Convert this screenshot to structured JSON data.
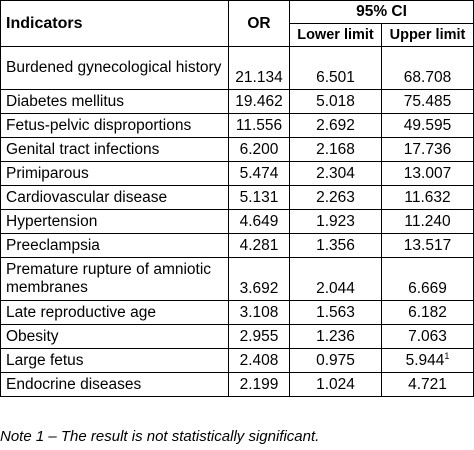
{
  "table": {
    "headers": {
      "indicators": "Indicators",
      "or": "OR",
      "ci": "95% CI",
      "lower": "Lower limit",
      "upper": "Upper limit"
    },
    "rows": [
      {
        "indicator": "Burdened gynecological history",
        "or": "21.134",
        "lower": "6.501",
        "upper": "68.708",
        "note": ""
      },
      {
        "indicator": "Diabetes mellitus",
        "or": "19.462",
        "lower": "5.018",
        "upper": "75.485",
        "note": ""
      },
      {
        "indicator": "Fetus-pelvic disproportions",
        "or": "11.556",
        "lower": "2.692",
        "upper": "49.595",
        "note": ""
      },
      {
        "indicator": "Genital tract infections",
        "or": "6.200",
        "lower": "2.168",
        "upper": "17.736",
        "note": ""
      },
      {
        "indicator": "Primiparous",
        "or": "5.474",
        "lower": "2.304",
        "upper": "13.007",
        "note": ""
      },
      {
        "indicator": "Cardiovascular disease",
        "or": "5.131",
        "lower": "2.263",
        "upper": "11.632",
        "note": ""
      },
      {
        "indicator": "Hypertension",
        "or": "4.649",
        "lower": "1.923",
        "upper": "11.240",
        "note": ""
      },
      {
        "indicator": "Preeclampsia",
        "or": "4.281",
        "lower": "1.356",
        "upper": "13.517",
        "note": ""
      },
      {
        "indicator": "Premature rupture of amniotic membranes",
        "or": "3.692",
        "lower": "2.044",
        "upper": "6.669",
        "note": ""
      },
      {
        "indicator": "Late reproductive age",
        "or": "3.108",
        "lower": "1.563",
        "upper": "6.182",
        "note": ""
      },
      {
        "indicator": "Obesity",
        "or": "2.955",
        "lower": "1.236",
        "upper": "7.063",
        "note": ""
      },
      {
        "indicator": "Large fetus",
        "or": "2.408",
        "lower": "0.975",
        "upper": "5.944",
        "note": "1"
      },
      {
        "indicator": "Endocrine diseases",
        "or": "2.199",
        "lower": "1.024",
        "upper": "4.721",
        "note": ""
      }
    ]
  },
  "footnote": "Note 1 – The result is not statistically significant."
}
